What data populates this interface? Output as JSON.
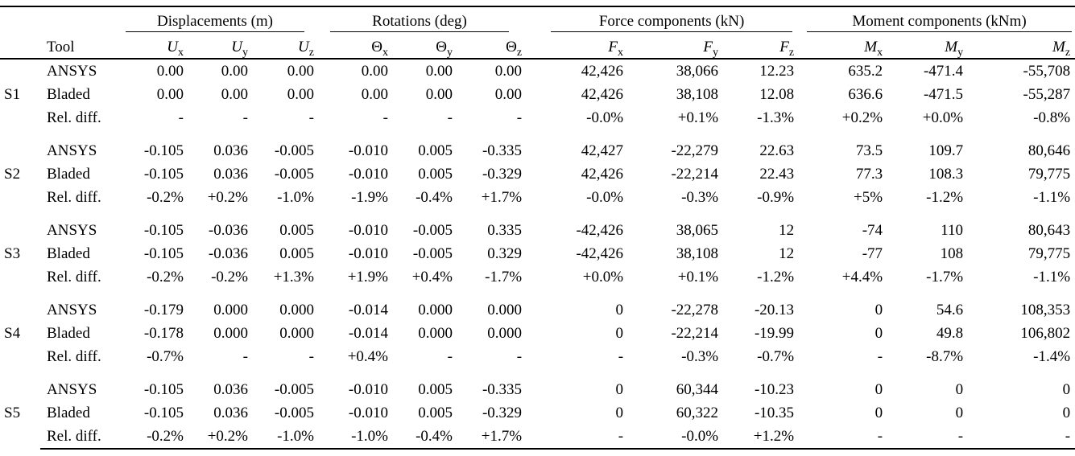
{
  "colors": {
    "background": "#ffffff",
    "text": "#000000",
    "rule": "#000000"
  },
  "table": {
    "group_headers": [
      {
        "label": "Displacements (m)"
      },
      {
        "label": "Rotations (deg)"
      },
      {
        "label": "Force components (kN)"
      },
      {
        "label": "Moment components (kNm)"
      }
    ],
    "tool_header": "Tool",
    "columns": [
      {
        "base": "U",
        "sub": "x"
      },
      {
        "base": "U",
        "sub": "y"
      },
      {
        "base": "U",
        "sub": "z"
      },
      {
        "base": "Θ",
        "sub": "x"
      },
      {
        "base": "Θ",
        "sub": "y"
      },
      {
        "base": "Θ",
        "sub": "z"
      },
      {
        "base": "F",
        "sub": "x"
      },
      {
        "base": "F",
        "sub": "y"
      },
      {
        "base": "F",
        "sub": "z"
      },
      {
        "base": "M",
        "sub": "x"
      },
      {
        "base": "M",
        "sub": "y"
      },
      {
        "base": "M",
        "sub": "z"
      }
    ],
    "groups": [
      {
        "id": "S1",
        "rows": [
          {
            "tool": "ANSYS",
            "values": [
              "0.00",
              "0.00",
              "0.00",
              "0.00",
              "0.00",
              "0.00",
              "42,426",
              "38,066",
              "12.23",
              "635.2",
              "-471.4",
              "-55,708"
            ]
          },
          {
            "tool": "Bladed",
            "values": [
              "0.00",
              "0.00",
              "0.00",
              "0.00",
              "0.00",
              "0.00",
              "42,426",
              "38,108",
              "12.08",
              "636.6",
              "-471.5",
              "-55,287"
            ]
          },
          {
            "tool": "Rel. diff.",
            "values": [
              "-",
              "-",
              "-",
              "-",
              "-",
              "-",
              "-0.0%",
              "+0.1%",
              "-1.3%",
              "+0.2%",
              "+0.0%",
              "-0.8%"
            ]
          }
        ]
      },
      {
        "id": "S2",
        "rows": [
          {
            "tool": "ANSYS",
            "values": [
              "-0.105",
              "0.036",
              "-0.005",
              "-0.010",
              "0.005",
              "-0.335",
              "42,427",
              "-22,279",
              "22.63",
              "73.5",
              "109.7",
              "80,646"
            ]
          },
          {
            "tool": "Bladed",
            "values": [
              "-0.105",
              "0.036",
              "-0.005",
              "-0.010",
              "0.005",
              "-0.329",
              "42,426",
              "-22,214",
              "22.43",
              "77.3",
              "108.3",
              "79,775"
            ]
          },
          {
            "tool": "Rel. diff.",
            "values": [
              "-0.2%",
              "+0.2%",
              "-1.0%",
              "-1.9%",
              "-0.4%",
              "+1.7%",
              "-0.0%",
              "-0.3%",
              "-0.9%",
              "+5%",
              "-1.2%",
              "-1.1%"
            ]
          }
        ]
      },
      {
        "id": "S3",
        "rows": [
          {
            "tool": "ANSYS",
            "values": [
              "-0.105",
              "-0.036",
              "0.005",
              "-0.010",
              "-0.005",
              "0.335",
              "-42,426",
              "38,065",
              "12",
              "-74",
              "110",
              "80,643"
            ]
          },
          {
            "tool": "Bladed",
            "values": [
              "-0.105",
              "-0.036",
              "0.005",
              "-0.010",
              "-0.005",
              "0.329",
              "-42,426",
              "38,108",
              "12",
              "-77",
              "108",
              "79,775"
            ]
          },
          {
            "tool": "Rel. diff.",
            "values": [
              "-0.2%",
              "-0.2%",
              "+1.3%",
              "+1.9%",
              "+0.4%",
              "-1.7%",
              "+0.0%",
              "+0.1%",
              "-1.2%",
              "+4.4%",
              "-1.7%",
              "-1.1%"
            ]
          }
        ]
      },
      {
        "id": "S4",
        "rows": [
          {
            "tool": "ANSYS",
            "values": [
              "-0.179",
              "0.000",
              "0.000",
              "-0.014",
              "0.000",
              "0.000",
              "0",
              "-22,278",
              "-20.13",
              "0",
              "54.6",
              "108,353"
            ]
          },
          {
            "tool": "Bladed",
            "values": [
              "-0.178",
              "0.000",
              "0.000",
              "-0.014",
              "0.000",
              "0.000",
              "0",
              "-22,214",
              "-19.99",
              "0",
              "49.8",
              "106,802"
            ]
          },
          {
            "tool": "Rel. diff.",
            "values": [
              "-0.7%",
              "-",
              "-",
              "+0.4%",
              "-",
              "-",
              "-",
              "-0.3%",
              "-0.7%",
              "-",
              "-8.7%",
              "-1.4%"
            ]
          }
        ]
      },
      {
        "id": "S5",
        "rows": [
          {
            "tool": "ANSYS",
            "values": [
              "-0.105",
              "0.036",
              "-0.005",
              "-0.010",
              "0.005",
              "-0.335",
              "0",
              "60,344",
              "-10.23",
              "0",
              "0",
              "0"
            ]
          },
          {
            "tool": "Bladed",
            "values": [
              "-0.105",
              "0.036",
              "-0.005",
              "-0.010",
              "0.005",
              "-0.329",
              "0",
              "60,322",
              "-10.35",
              "0",
              "0",
              "0"
            ]
          },
          {
            "tool": "Rel. diff.",
            "values": [
              "-0.2%",
              "+0.2%",
              "-1.0%",
              "-1.0%",
              "-0.4%",
              "+1.7%",
              "-",
              "-0.0%",
              "+1.2%",
              "-",
              "-",
              "-"
            ]
          }
        ]
      }
    ]
  }
}
